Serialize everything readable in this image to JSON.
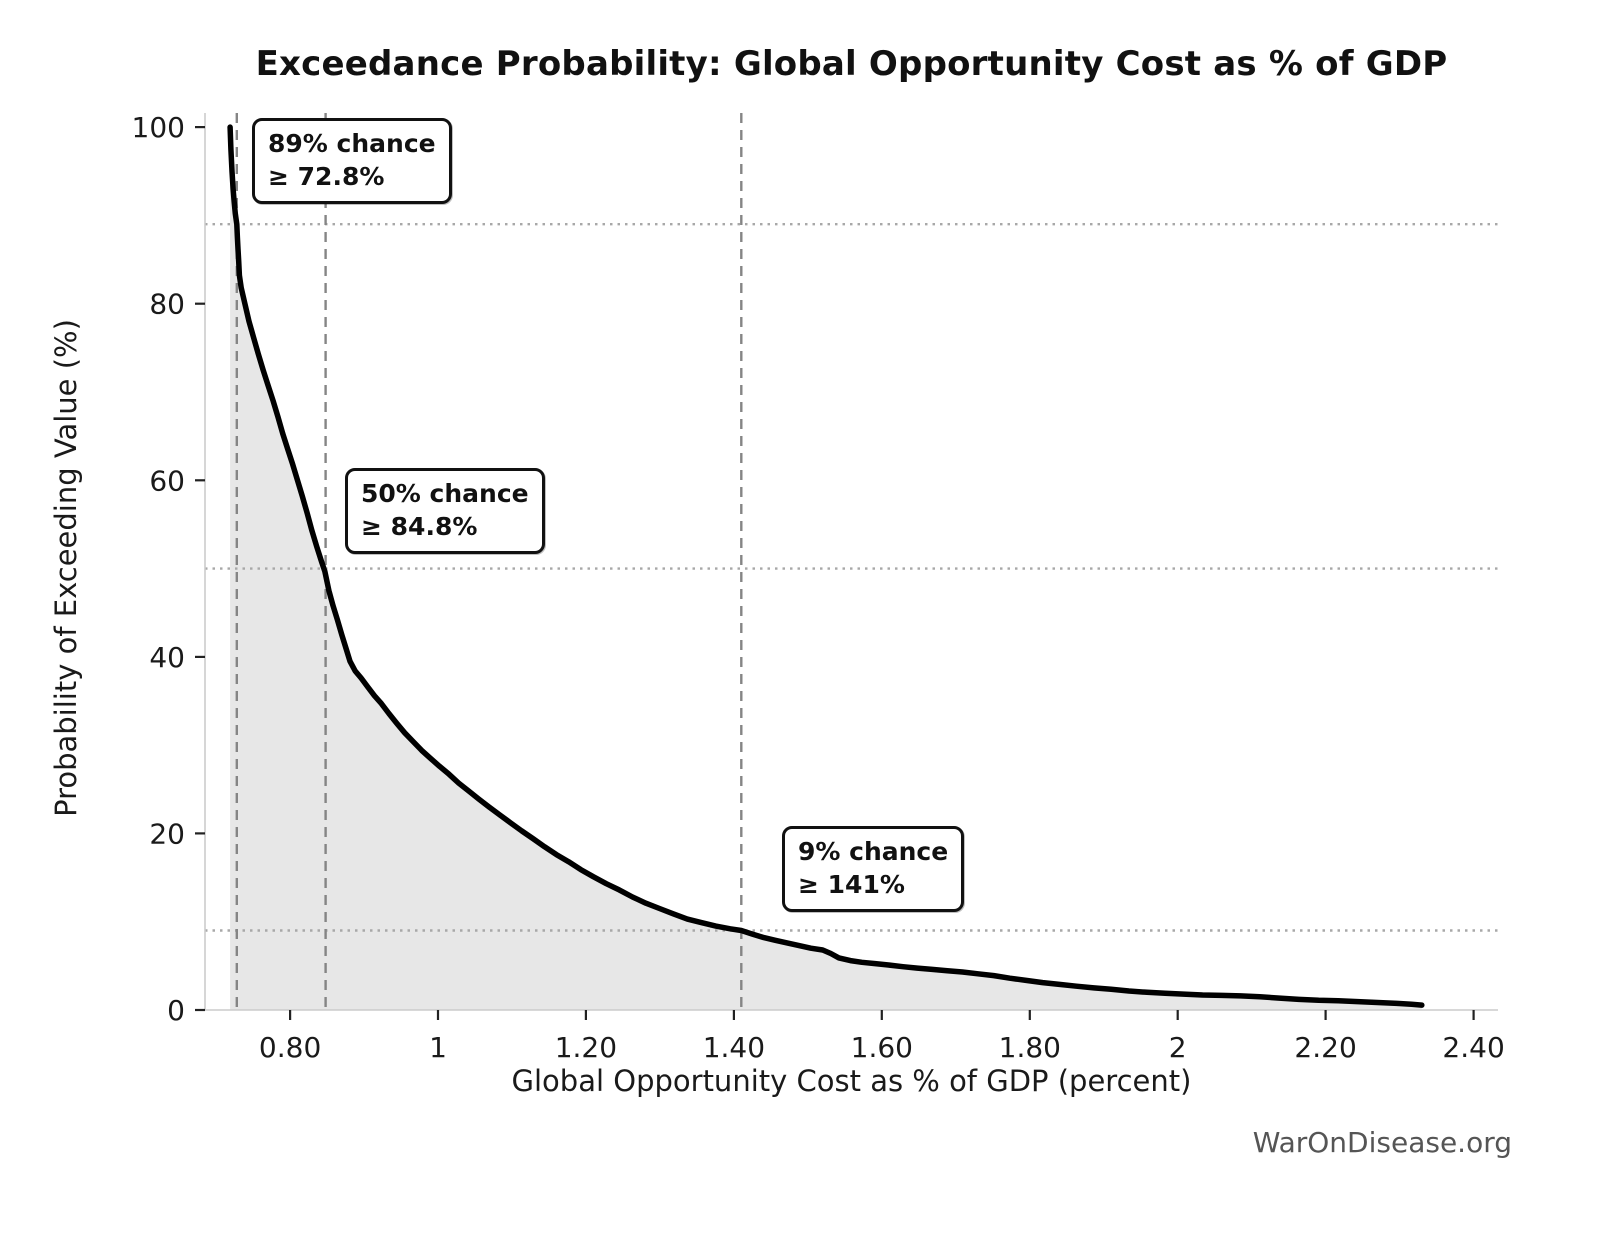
{
  "title": "Exceedance Probability: Global Opportunity Cost as % of GDP",
  "watermark": "WarOnDisease.org",
  "chart_data": {
    "type": "line",
    "title": "Exceedance Probability: Global Opportunity Cost as % of GDP",
    "xlabel": "Global Opportunity Cost as % of GDP (percent)",
    "ylabel": "Probability of Exceeding Value (%)",
    "xlim": [
      0.685,
      2.433
    ],
    "ylim": [
      0,
      101.6
    ],
    "grid": "marker-lines-only",
    "line_color": "#000000",
    "fill_color": "#e7e7e7",
    "dashed_line_color": "#858585",
    "dotted_line_color": "#a8a8a8",
    "spine_color": "#cccccc",
    "tick_color": "#222222",
    "tick_label_color": "#1a1a1a",
    "xticks": [
      {
        "v": 0.8,
        "label": "0.80"
      },
      {
        "v": 1.0,
        "label": "1"
      },
      {
        "v": 1.2,
        "label": "1.20"
      },
      {
        "v": 1.4,
        "label": "1.40"
      },
      {
        "v": 1.6,
        "label": "1.60"
      },
      {
        "v": 1.8,
        "label": "1.80"
      },
      {
        "v": 2.0,
        "label": "2"
      },
      {
        "v": 2.2,
        "label": "2.20"
      },
      {
        "v": 2.4,
        "label": "2.40"
      }
    ],
    "yticks": [
      {
        "v": 0,
        "label": "0"
      },
      {
        "v": 20,
        "label": "20"
      },
      {
        "v": 40,
        "label": "40"
      },
      {
        "v": 60,
        "label": "60"
      },
      {
        "v": 80,
        "label": "80"
      },
      {
        "v": 100,
        "label": "100"
      }
    ],
    "dashed_vlines": [
      0.728,
      0.848,
      1.41
    ],
    "dotted_hlines": [
      89,
      50,
      9
    ],
    "annotations": [
      {
        "line1": "89% chance",
        "line2": "≥ 72.8%",
        "x": 0.7486,
        "p": 101.0
      },
      {
        "line1": "50% chance",
        "line2": "≥ 84.8%",
        "x": 0.8743,
        "p": 61.4
      },
      {
        "line1": "9% chance",
        "line2": "≥ 141%",
        "x": 1.4649,
        "p": 20.8
      }
    ],
    "points": [
      [
        0.719,
        100
      ],
      [
        0.72,
        97.5
      ],
      [
        0.7215,
        95.0
      ],
      [
        0.723,
        93.0
      ],
      [
        0.7245,
        91.5
      ],
      [
        0.726,
        90.2
      ],
      [
        0.728,
        89.0
      ],
      [
        0.7288,
        87.5
      ],
      [
        0.7296,
        86.2
      ],
      [
        0.7305,
        84.8
      ],
      [
        0.7315,
        83.2
      ],
      [
        0.734,
        81.8
      ],
      [
        0.739,
        80.0
      ],
      [
        0.7445,
        78.0
      ],
      [
        0.7505,
        76.2
      ],
      [
        0.757,
        74.3
      ],
      [
        0.7635,
        72.5
      ],
      [
        0.77,
        70.8
      ],
      [
        0.777,
        69.0
      ],
      [
        0.7835,
        67.2
      ],
      [
        0.79,
        65.3
      ],
      [
        0.797,
        63.5
      ],
      [
        0.8035,
        61.8
      ],
      [
        0.81,
        60.0
      ],
      [
        0.8165,
        58.2
      ],
      [
        0.823,
        56.3
      ],
      [
        0.8295,
        54.3
      ],
      [
        0.836,
        52.5
      ],
      [
        0.8425,
        50.8
      ],
      [
        0.847,
        49.7
      ],
      [
        0.8525,
        47.5
      ],
      [
        0.858,
        45.8
      ],
      [
        0.864,
        44.2
      ],
      [
        0.87,
        42.5
      ],
      [
        0.8755,
        41.0
      ],
      [
        0.881,
        39.5
      ],
      [
        0.888,
        38.4
      ],
      [
        0.896,
        37.6
      ],
      [
        0.905,
        36.6
      ],
      [
        0.914,
        35.6
      ],
      [
        0.9235,
        34.7
      ],
      [
        0.9335,
        33.6
      ],
      [
        0.944,
        32.5
      ],
      [
        0.955,
        31.4
      ],
      [
        0.9665,
        30.4
      ],
      [
        0.978,
        29.4
      ],
      [
        0.99,
        28.5
      ],
      [
        1.002,
        27.6
      ],
      [
        1.015,
        26.7
      ],
      [
        1.028,
        25.7
      ],
      [
        1.0415,
        24.8
      ],
      [
        1.055,
        23.9
      ],
      [
        1.069,
        23.0
      ],
      [
        1.0835,
        22.1
      ],
      [
        1.098,
        21.2
      ],
      [
        1.113,
        20.3
      ],
      [
        1.1285,
        19.4
      ],
      [
        1.144,
        18.5
      ],
      [
        1.16,
        17.6
      ],
      [
        1.1765,
        16.8
      ],
      [
        1.193,
        15.9
      ],
      [
        1.21,
        15.1
      ],
      [
        1.2275,
        14.3
      ],
      [
        1.245,
        13.6
      ],
      [
        1.263,
        12.8
      ],
      [
        1.281,
        12.1
      ],
      [
        1.2995,
        11.5
      ],
      [
        1.318,
        10.9
      ],
      [
        1.337,
        10.3
      ],
      [
        1.356,
        9.9
      ],
      [
        1.3755,
        9.5
      ],
      [
        1.395,
        9.2
      ],
      [
        1.41,
        9.0
      ],
      [
        1.425,
        8.6
      ],
      [
        1.4405,
        8.2
      ],
      [
        1.456,
        7.9
      ],
      [
        1.472,
        7.6
      ],
      [
        1.488,
        7.3
      ],
      [
        1.504,
        7.0
      ],
      [
        1.52,
        6.8
      ],
      [
        1.531,
        6.4
      ],
      [
        1.542,
        5.9
      ],
      [
        1.5575,
        5.6
      ],
      [
        1.573,
        5.4
      ],
      [
        1.591,
        5.25
      ],
      [
        1.609,
        5.1
      ],
      [
        1.6285,
        4.9
      ],
      [
        1.648,
        4.75
      ],
      [
        1.668,
        4.6
      ],
      [
        1.6885,
        4.45
      ],
      [
        1.709,
        4.3
      ],
      [
        1.73,
        4.1
      ],
      [
        1.7515,
        3.9
      ],
      [
        1.773,
        3.6
      ],
      [
        1.795,
        3.35
      ],
      [
        1.8175,
        3.1
      ],
      [
        1.84,
        2.9
      ],
      [
        1.863,
        2.7
      ],
      [
        1.8865,
        2.5
      ],
      [
        1.91,
        2.35
      ],
      [
        1.934,
        2.15
      ],
      [
        1.9585,
        2.0
      ],
      [
        1.983,
        1.9
      ],
      [
        2.008,
        1.8
      ],
      [
        2.0335,
        1.7
      ],
      [
        2.059,
        1.65
      ],
      [
        2.085,
        1.6
      ],
      [
        2.111,
        1.5
      ],
      [
        2.1375,
        1.35
      ],
      [
        2.164,
        1.2
      ],
      [
        2.1905,
        1.1
      ],
      [
        2.217,
        1.05
      ],
      [
        2.2435,
        0.95
      ],
      [
        2.27,
        0.85
      ],
      [
        2.2965,
        0.75
      ],
      [
        2.316,
        0.65
      ],
      [
        2.33,
        0.55
      ]
    ]
  }
}
